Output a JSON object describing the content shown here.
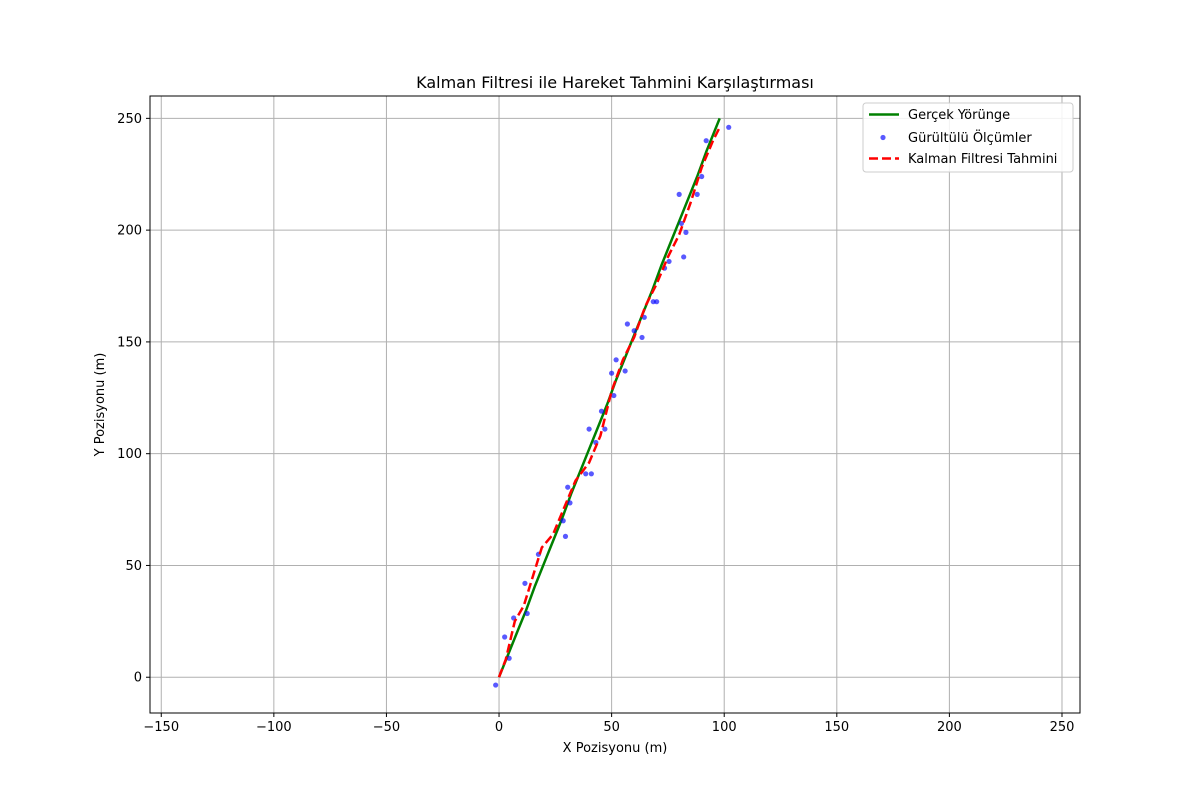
{
  "chart_data": {
    "type": "line",
    "title": "Kalman Filtresi ile Hareket Tahmini Karşılaştırması",
    "xlabel": "X Pozisyonu (m)",
    "ylabel": "Y Pozisyonu (m)",
    "xlim": [
      -155,
      258
    ],
    "ylim": [
      -16,
      260
    ],
    "xticks": [
      -150,
      -100,
      -50,
      0,
      50,
      100,
      150,
      200,
      250
    ],
    "xtick_labels": [
      "−150",
      "−100",
      "−50",
      "0",
      "50",
      "100",
      "150",
      "200",
      "250"
    ],
    "yticks": [
      0,
      50,
      100,
      150,
      200,
      250
    ],
    "ytick_labels": [
      "0",
      "50",
      "100",
      "150",
      "200",
      "250"
    ],
    "grid": true,
    "legend_position": "top-right",
    "legend": [
      "Gerçek Yörünge",
      "Gürültülü Ölçümler",
      "Kalman Filtresi Tahmini"
    ],
    "colors": {
      "true": "#008000",
      "measured": "#0000ff",
      "kalman": "#ff0000"
    },
    "series": [
      {
        "name": "Gerçek Yörünge",
        "style": "solid",
        "x": [
          0,
          4,
          8,
          12,
          16,
          20,
          24,
          28,
          32,
          36,
          40,
          44,
          48,
          52,
          56,
          60,
          64,
          68,
          72,
          76,
          80,
          84,
          88,
          92,
          96,
          98
        ],
        "y": [
          0,
          10,
          20,
          30,
          41,
          51,
          61,
          71,
          82,
          92,
          102,
          112,
          122,
          133,
          143,
          153,
          163,
          173,
          184,
          194,
          204,
          214,
          224,
          235,
          245,
          250
        ]
      },
      {
        "name": "Gürültülü Ölçümler",
        "style": "scatter",
        "x": [
          -1.5,
          2.5,
          4.5,
          6.5,
          11.5,
          12.5,
          17.5,
          28.5,
          29.5,
          30.5,
          31.5,
          38.5,
          40,
          41,
          43,
          45.5,
          47,
          50,
          51,
          52,
          56,
          57,
          60,
          63.5,
          64.5,
          68.5,
          70,
          73.5,
          75.5,
          80,
          81,
          82,
          83,
          88,
          90,
          92,
          102
        ],
        "y": [
          -3.5,
          18,
          8.5,
          26.5,
          42,
          28.5,
          55,
          70,
          63,
          85,
          78,
          91,
          111,
          91,
          105,
          119,
          111,
          136,
          126,
          142,
          137,
          158,
          155,
          152,
          161,
          168,
          168,
          183,
          186,
          216,
          203,
          188,
          199,
          216,
          224,
          240,
          246
        ]
      },
      {
        "name": "Kalman Filtresi Tahmini",
        "style": "dashed",
        "x": [
          0,
          3,
          7,
          11,
          15,
          19,
          24,
          29,
          34,
          40,
          45,
          50,
          55,
          60,
          65,
          70,
          75,
          80,
          85,
          90,
          95,
          98
        ],
        "y": [
          0,
          8,
          25,
          32,
          45,
          58,
          64,
          76,
          88,
          96,
          108,
          128,
          142,
          152,
          166,
          176,
          188,
          198,
          212,
          228,
          240,
          246
        ]
      }
    ]
  }
}
